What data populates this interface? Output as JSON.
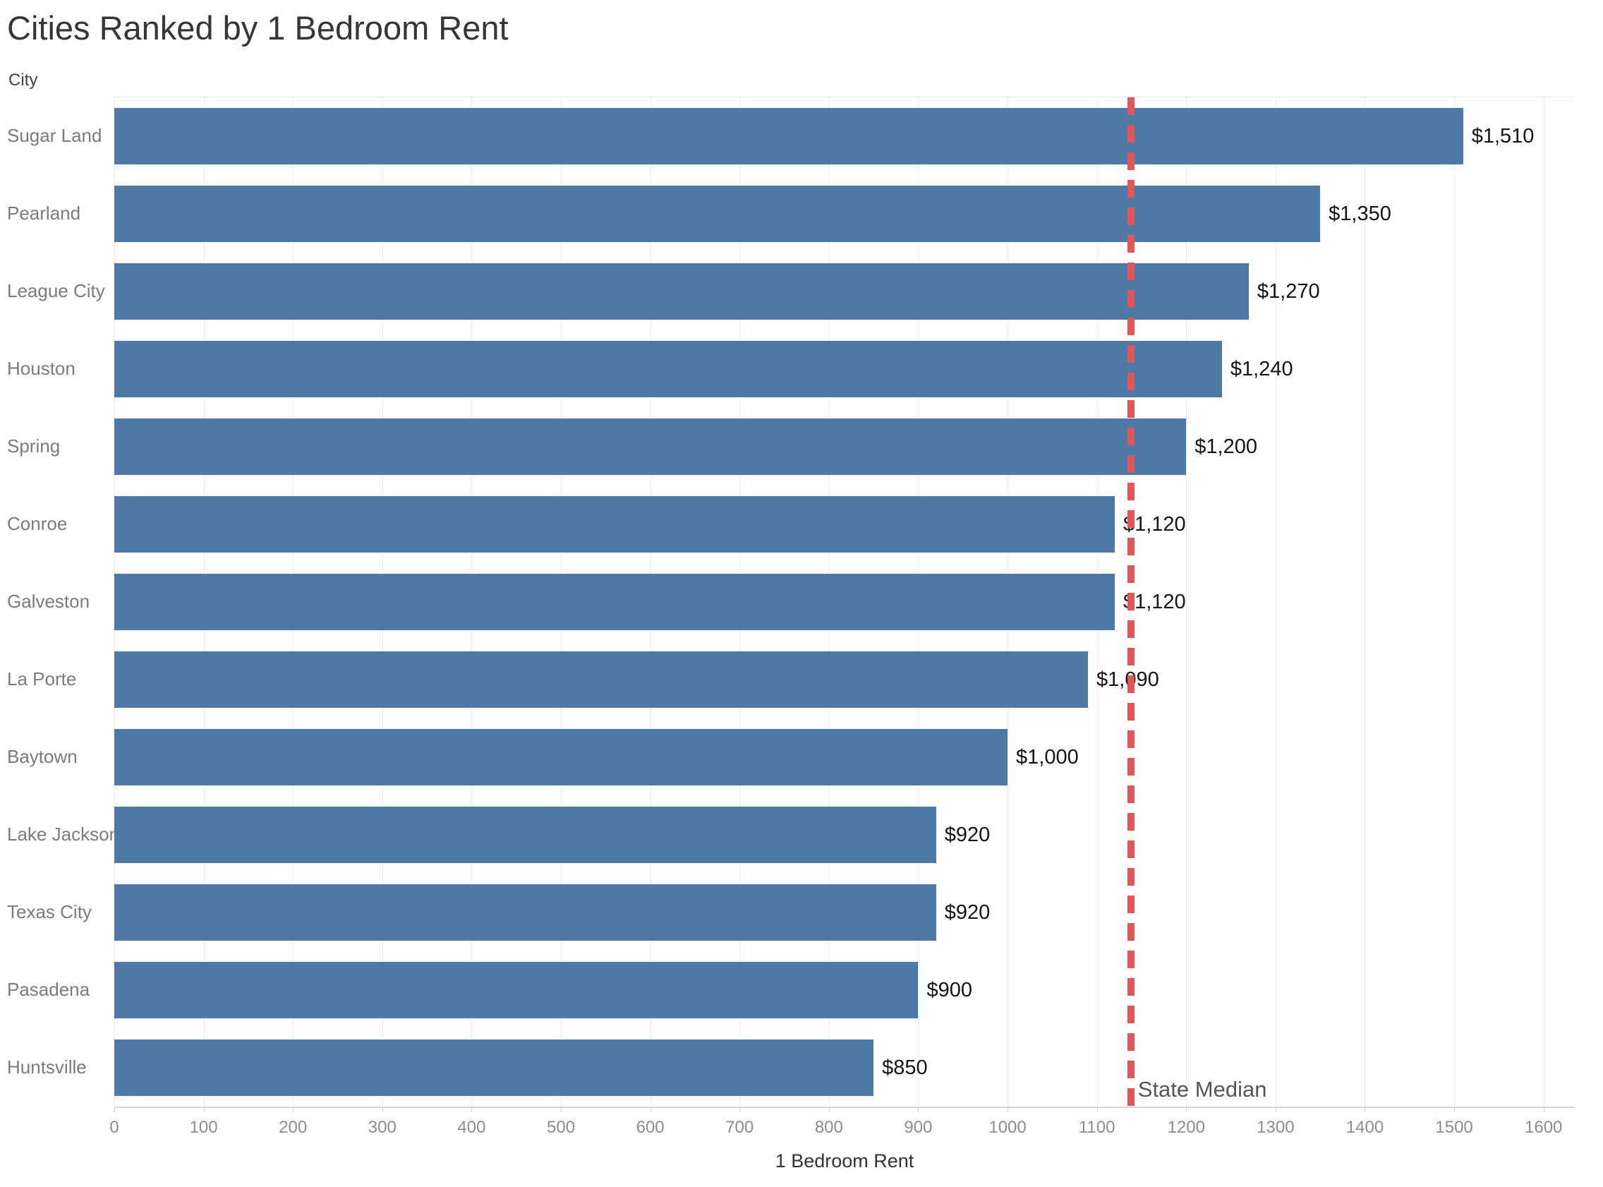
{
  "title": "Cities Ranked by 1 Bedroom Rent",
  "row_axis_label": "City",
  "colors": {
    "bar": "#4e79a7",
    "reference_line": "#e15759",
    "gridline": "#ececec",
    "category_label": "#7b7b7b",
    "value_label": "#141414",
    "tick_label": "#8c8c8c",
    "title": "#363636"
  },
  "chart_data": {
    "type": "bar",
    "orientation": "horizontal",
    "title": "Cities Ranked by 1 Bedroom Rent",
    "xlabel": "1 Bedroom Rent",
    "ylabel": "City",
    "categories": [
      "Sugar Land",
      "Pearland",
      "League City",
      "Houston",
      "Spring",
      "Conroe",
      "Galveston",
      "La Porte",
      "Baytown",
      "Lake Jackson",
      "Texas City",
      "Pasadena",
      "Huntsville"
    ],
    "values": [
      1510,
      1350,
      1270,
      1240,
      1200,
      1120,
      1120,
      1090,
      1000,
      920,
      920,
      900,
      850
    ],
    "value_labels": [
      "$1,510",
      "$1,350",
      "$1,270",
      "$1,240",
      "$1,200",
      "$1,120",
      "$1,120",
      "$1,090",
      "$1,000",
      "$920",
      "$920",
      "$900",
      "$850"
    ],
    "xticks": [
      0,
      100,
      200,
      300,
      400,
      500,
      600,
      700,
      800,
      900,
      1000,
      1100,
      1200,
      1300,
      1400,
      1500,
      1600
    ],
    "xlim": [
      0,
      1635
    ],
    "grid": "vertical",
    "legend": "none",
    "bar_color": "#4e79a7",
    "reference_line": {
      "label": "State Median",
      "value": 1138,
      "color": "#e15759",
      "style": "dashed"
    }
  }
}
